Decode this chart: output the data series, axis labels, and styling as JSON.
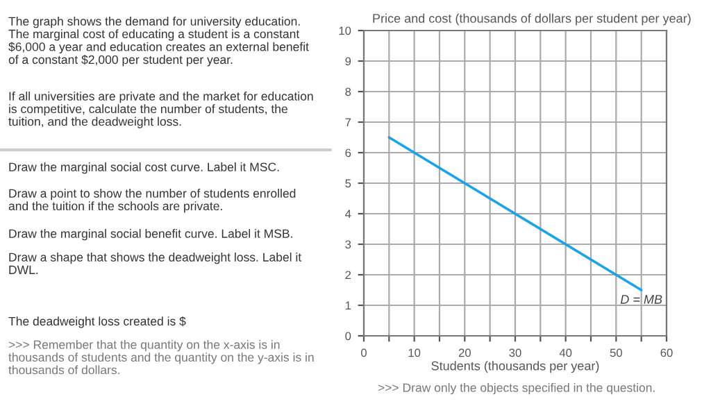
{
  "chart_data": {
    "type": "line",
    "title": "Price and cost (thousands of dollars per student per year)",
    "xlabel": "Students (thousands per year)",
    "xlim": [
      0,
      60
    ],
    "ylim": [
      0,
      10
    ],
    "xticks": [
      0,
      {
        "value": 5,
        "label": null
      },
      10,
      {
        "value": 15,
        "label": null
      },
      20,
      {
        "value": 25,
        "label": null
      },
      30,
      {
        "value": 35,
        "label": null
      },
      40,
      {
        "value": 45,
        "label": null
      },
      50,
      {
        "value": 55,
        "label": null
      },
      60
    ],
    "yticks": [
      0,
      1,
      2,
      3,
      4,
      5,
      6,
      7,
      8,
      9,
      10
    ],
    "grid": true,
    "marker": "none",
    "line_style": "solid",
    "series": [
      {
        "name": "D = MB",
        "color": "#1aa3e8",
        "x": [
          5,
          55
        ],
        "values": [
          6.5,
          1.5
        ]
      }
    ],
    "annotations": [
      "The graph shows the demand for university education.\nThe marginal cost of educating a student is a constant\n$6,000 a year and education creates an external benefit\nof a constant $2,000 per student per year.",
      "If all universities are private and the market for education\nis competitive, calculate the number of students, the\ntuition, and the deadweight loss.",
      "Draw the marginal social cost curve. Label it MSC.",
      "Draw a point to show the number of students enrolled\nand the tuition if the schools are private.",
      "Draw the marginal social benefit curve. Label it MSB.",
      "Draw a shape that shows the deadweight loss. Label it\nDWL.",
      "The deadweight loss created is $",
      ">>> Remember that the quantity on the x-axis is in\nthousands of students and the quantity on the y-axis is in\nthousands of dollars.",
      ">>> Draw only the objects specified in the question."
    ]
  }
}
